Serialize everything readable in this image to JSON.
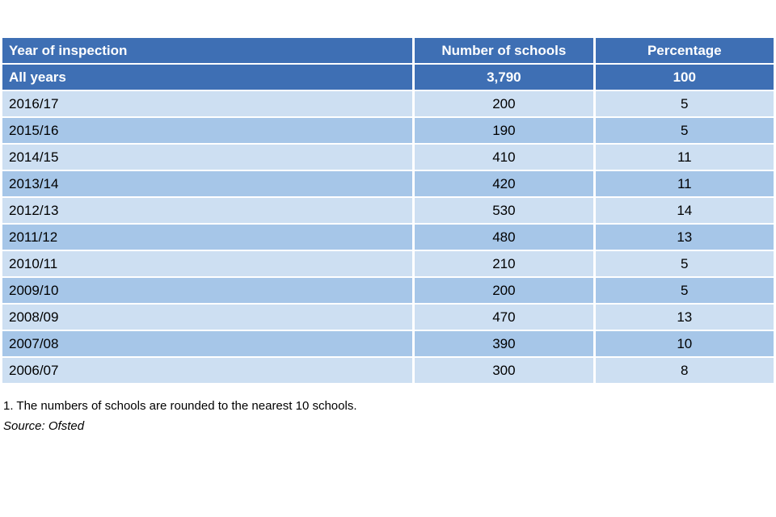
{
  "colors": {
    "header_bg": "#3e6fb4",
    "header_fg": "#ffffff",
    "row_light": "#cddff2",
    "row_medium": "#a6c6e8",
    "body_fg": "#000000"
  },
  "chart_data": {
    "type": "table",
    "title": "",
    "headers": [
      "Year of inspection",
      "Number of schools",
      "Percentage"
    ],
    "total_row": {
      "year": "All years",
      "schools": "3,790",
      "percentage": "100"
    },
    "rows": [
      {
        "year": "2016/17",
        "schools": "200",
        "percentage": "5"
      },
      {
        "year": "2015/16",
        "schools": "190",
        "percentage": "5"
      },
      {
        "year": "2014/15",
        "schools": "410",
        "percentage": "11"
      },
      {
        "year": "2013/14",
        "schools": "420",
        "percentage": "11"
      },
      {
        "year": "2012/13",
        "schools": "530",
        "percentage": "14"
      },
      {
        "year": "2011/12",
        "schools": "480",
        "percentage": "13"
      },
      {
        "year": "2010/11",
        "schools": "210",
        "percentage": "5"
      },
      {
        "year": "2009/10",
        "schools": "200",
        "percentage": "5"
      },
      {
        "year": "2008/09",
        "schools": "470",
        "percentage": "13"
      },
      {
        "year": "2007/08",
        "schools": "390",
        "percentage": "10"
      },
      {
        "year": "2006/07",
        "schools": "300",
        "percentage": "8"
      }
    ],
    "layout": {
      "grid": "white 2-3px separators between all cells",
      "header_alignment": [
        "left",
        "center",
        "center"
      ],
      "body_alignment": [
        "left",
        "center",
        "center"
      ]
    }
  },
  "footnotes": {
    "note1": "1. The numbers of schools are rounded to the nearest 10 schools.",
    "source": "Source: Ofsted"
  }
}
